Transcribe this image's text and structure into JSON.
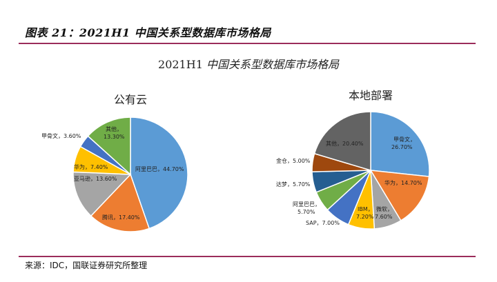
{
  "figure": {
    "title": "图表 21：2021H1 中国关系型数据库市场格局",
    "source": "来源：IDC，国联证券研究所整理",
    "accent_rule_color": "#9b2c5a"
  },
  "chart_data": [
    {
      "type": "pie",
      "title": "公有云",
      "suptitle": "2021H1 中国关系型数据库市场格局",
      "categories": [
        "阿里巴巴",
        "腾讯",
        "亚马逊",
        "华为",
        "甲骨文",
        "其他"
      ],
      "values": [
        44.7,
        17.4,
        13.6,
        7.4,
        3.6,
        13.3
      ],
      "labels": [
        "阿里巴巴，44.70%",
        "腾讯，17.40%",
        "亚马逊，13.60%",
        "华为，7.40%",
        "甲骨文，3.60%",
        "其他，13.30%"
      ],
      "colors": [
        "#5b9bd5",
        "#ed7d31",
        "#a5a5a5",
        "#ffc000",
        "#4472c4",
        "#70ad47"
      ]
    },
    {
      "type": "pie",
      "title": "本地部署",
      "categories": [
        "甲骨文",
        "华为",
        "微软",
        "IBM",
        "SAP",
        "阿里巴巴",
        "达梦",
        "金仓",
        "其他"
      ],
      "values": [
        26.7,
        14.7,
        7.6,
        7.2,
        7.0,
        5.7,
        5.7,
        5.0,
        20.4
      ],
      "labels": [
        "甲骨文，26.70%",
        "华为，14.70%",
        "微软，7.60%",
        "IBM，7.20%",
        "SAP，7.00%",
        "阿里巴巴，5.70%",
        "达梦，5.70%",
        "金仓，5.00%",
        "其他，20.40%"
      ],
      "colors": [
        "#5b9bd5",
        "#ed7d31",
        "#a5a5a5",
        "#ffc000",
        "#4472c4",
        "#70ad47",
        "#255e91",
        "#9e480e",
        "#636363"
      ]
    }
  ],
  "labels_text": {
    "suptitle_num": "2021H1 ",
    "suptitle_cn": "中国关系型数据库市场格局",
    "left_title": "公有云",
    "right_title": "本地部署",
    "left": {
      "alibaba": "阿里巴巴，44.70%",
      "tencent": "腾讯，17.40%",
      "amazon": "亚马逊，13.60%",
      "huawei": "华为，7.40%",
      "oracle": "甲骨文，3.60%",
      "other_1": "其他，",
      "other_2": "13.30%"
    },
    "right": {
      "oracle_1": "甲骨文，",
      "oracle_2": "26.70%",
      "huawei": "华为，14.70%",
      "microsoft_1": "微软，",
      "microsoft_2": "7.60%",
      "ibm_1": "IBM，",
      "ibm_2": "7.20%",
      "sap": "SAP，7.00%",
      "alibaba_1": "阿里巴巴，",
      "alibaba_2": "5.70%",
      "dameng": "达梦，5.70%",
      "kingbase": "金仓，5.00%",
      "other": "其他，20.40%"
    }
  }
}
